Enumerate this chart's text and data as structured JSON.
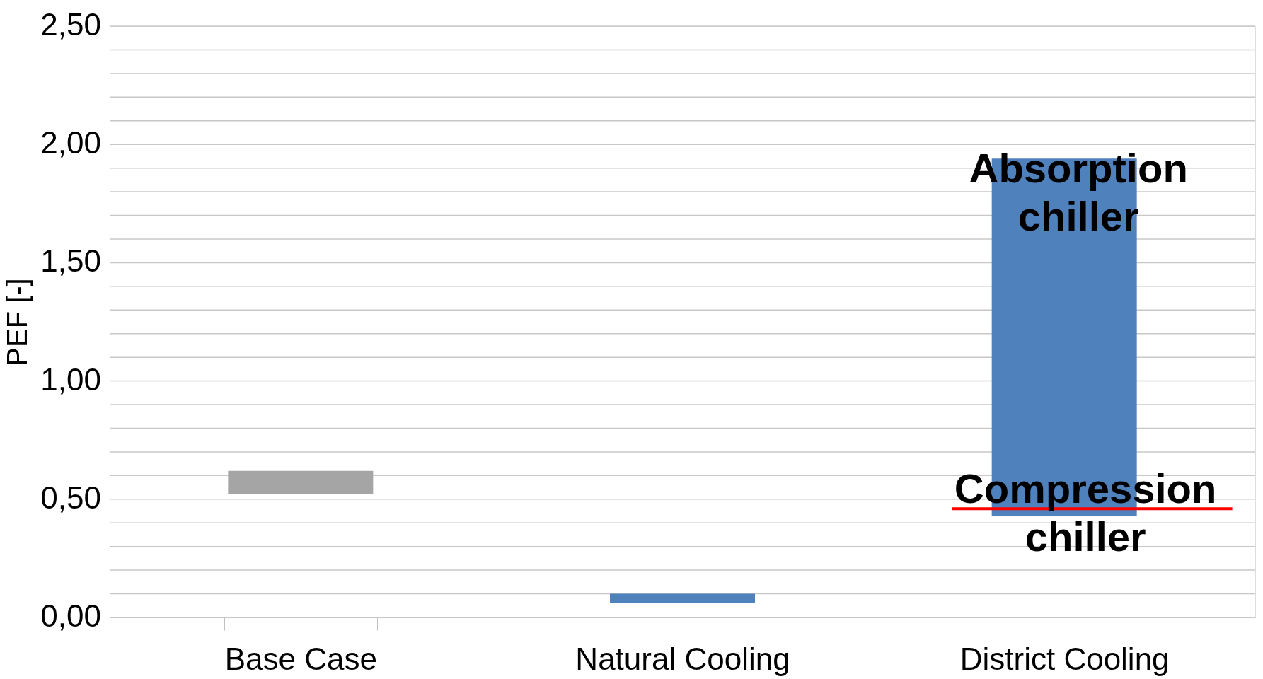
{
  "chart_data": {
    "type": "bar",
    "ylabel": "PEF [-]",
    "categories": [
      "Base Case",
      "Natural Cooling",
      "District Cooling"
    ],
    "values": [
      0.1,
      0.04,
      1.51
    ],
    "base": [
      0.52,
      0.06,
      0.43
    ],
    "colors": [
      "#a5a5a5",
      "#4f81bd",
      "#4f81bd"
    ],
    "ylim": [
      0,
      2.5
    ],
    "yticks": [
      {
        "value": 0,
        "label": "0,00"
      },
      {
        "value": 0.1,
        "label": null
      },
      {
        "value": 0.2,
        "label": null
      },
      {
        "value": 0.3,
        "label": null
      },
      {
        "value": 0.4,
        "label": null
      },
      {
        "value": 0.5,
        "label": "0,50"
      },
      {
        "value": 0.6,
        "label": null
      },
      {
        "value": 0.7,
        "label": null
      },
      {
        "value": 0.8,
        "label": null
      },
      {
        "value": 0.9,
        "label": null
      },
      {
        "value": 1.0,
        "label": "1,00"
      },
      {
        "value": 1.1,
        "label": null
      },
      {
        "value": 1.2,
        "label": null
      },
      {
        "value": 1.3,
        "label": null
      },
      {
        "value": 1.4,
        "label": null
      },
      {
        "value": 1.5,
        "label": "1,50"
      },
      {
        "value": 1.6,
        "label": null
      },
      {
        "value": 1.7,
        "label": null
      },
      {
        "value": 1.8,
        "label": null
      },
      {
        "value": 1.9,
        "label": null
      },
      {
        "value": 2.0,
        "label": "2,00"
      },
      {
        "value": 2.1,
        "label": null
      },
      {
        "value": 2.2,
        "label": null
      },
      {
        "value": 2.3,
        "label": null
      },
      {
        "value": 2.4,
        "label": null
      },
      {
        "value": 2.5,
        "label": "2,50"
      }
    ],
    "grid": "y",
    "ref_lines": [
      {
        "axis": "y",
        "value": 0.46,
        "color": "#ff0000"
      }
    ],
    "annotations": [
      {
        "text": "Absorption chiller",
        "x": "District Cooling",
        "y": 1.94
      },
      {
        "text": "Compression chiller",
        "x": "District Cooling",
        "y": 0.43
      }
    ]
  }
}
